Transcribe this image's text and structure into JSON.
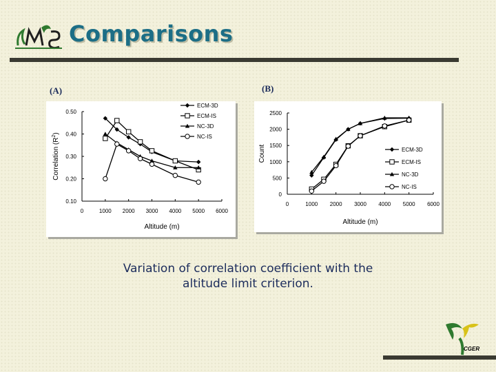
{
  "slide": {
    "title": "Comparisons",
    "caption_line1": "Variation of correlation coefficient with the",
    "caption_line2": "altitude limit criterion.",
    "logo_text": "CGER",
    "colors": {
      "title": "#1c6e86",
      "rule": "#3a3a32",
      "caption": "#1c2c5c",
      "logo_green": "#2f7a2f",
      "logo_yellow": "#d8c21a"
    }
  },
  "chart_data": [
    {
      "label": "(A)",
      "type": "line",
      "ylabel_main": "Correlation (R",
      "ylabel_sup": "2",
      "ylabel_end": ")",
      "xlabel": "Altitude (m)",
      "xlim": [
        0,
        6000
      ],
      "ylim": [
        0.1,
        0.5
      ],
      "xticks": [
        0,
        1000,
        2000,
        3000,
        4000,
        5000,
        6000
      ],
      "xtick_labels": [
        "0",
        "1000",
        "2000",
        "3000",
        "4000",
        "5000",
        "6000"
      ],
      "yticks": [
        0.1,
        0.2,
        0.3,
        0.4,
        0.5
      ],
      "ytick_labels": [
        "0.10",
        "0.20",
        "0.30",
        "0.40",
        "0.50"
      ],
      "grid": false,
      "legend": "top-right",
      "series": [
        {
          "name": "ECM-3D",
          "marker": "diamond",
          "points": [
            [
              1000,
              0.47
            ],
            [
              1500,
              0.42
            ],
            [
              2000,
              0.385
            ],
            [
              2500,
              0.355
            ],
            [
              3000,
              0.32
            ],
            [
              4000,
              0.28
            ],
            [
              5000,
              0.275
            ]
          ]
        },
        {
          "name": "ECM-IS",
          "marker": "square",
          "points": [
            [
              1000,
              0.38
            ],
            [
              1500,
              0.46
            ],
            [
              2000,
              0.41
            ],
            [
              2500,
              0.365
            ],
            [
              3000,
              0.325
            ],
            [
              4000,
              0.28
            ],
            [
              5000,
              0.24
            ]
          ]
        },
        {
          "name": "NC-3D",
          "marker": "triangle",
          "points": [
            [
              1000,
              0.4
            ],
            [
              1500,
              0.36
            ],
            [
              2000,
              0.33
            ],
            [
              2500,
              0.3
            ],
            [
              3000,
              0.28
            ],
            [
              4000,
              0.25
            ],
            [
              5000,
              0.25
            ]
          ]
        },
        {
          "name": "NC-IS",
          "marker": "circle",
          "points": [
            [
              1000,
              0.2
            ],
            [
              1500,
              0.355
            ],
            [
              2000,
              0.325
            ],
            [
              2500,
              0.29
            ],
            [
              3000,
              0.265
            ],
            [
              4000,
              0.215
            ],
            [
              5000,
              0.185
            ]
          ]
        }
      ]
    },
    {
      "label": "(B)",
      "type": "line",
      "ylabel_main": "Count",
      "ylabel_sup": "",
      "ylabel_end": "",
      "xlabel": "Altitude (m)",
      "xlim": [
        0,
        6000
      ],
      "ylim": [
        0,
        2500
      ],
      "xticks": [
        0,
        1000,
        2000,
        3000,
        4000,
        5000,
        6000
      ],
      "xtick_labels": [
        "0",
        "1000",
        "2000",
        "3000",
        "4000",
        "5000",
        "6000"
      ],
      "yticks": [
        0,
        500,
        1000,
        1500,
        2000,
        2500
      ],
      "ytick_labels": [
        "0",
        "500",
        "1000",
        "1500",
        "2000",
        "2500"
      ],
      "grid": false,
      "legend": "right",
      "series": [
        {
          "name": "ECM-3D",
          "marker": "diamond",
          "points": [
            [
              1000,
              580
            ],
            [
              1500,
              1130
            ],
            [
              2000,
              1680
            ],
            [
              2500,
              2000
            ],
            [
              3000,
              2180
            ],
            [
              4000,
              2330
            ],
            [
              5000,
              2340
            ]
          ]
        },
        {
          "name": "ECM-IS",
          "marker": "square",
          "points": [
            [
              1000,
              160
            ],
            [
              1500,
              460
            ],
            [
              2000,
              920
            ],
            [
              2500,
              1490
            ],
            [
              3000,
              1800
            ],
            [
              4000,
              2080
            ],
            [
              5000,
              2280
            ]
          ]
        },
        {
          "name": "NC-3D",
          "marker": "triangle",
          "points": [
            [
              1000,
              680
            ],
            [
              1500,
              1150
            ],
            [
              2000,
              1700
            ],
            [
              2500,
              2000
            ],
            [
              3000,
              2180
            ],
            [
              4000,
              2350
            ],
            [
              5000,
              2350
            ]
          ]
        },
        {
          "name": "NC-IS",
          "marker": "circle",
          "points": [
            [
              1000,
              100
            ],
            [
              1500,
              400
            ],
            [
              2000,
              880
            ],
            [
              2500,
              1480
            ],
            [
              3000,
              1800
            ],
            [
              4000,
              2100
            ],
            [
              5000,
              2280
            ]
          ]
        }
      ]
    }
  ]
}
